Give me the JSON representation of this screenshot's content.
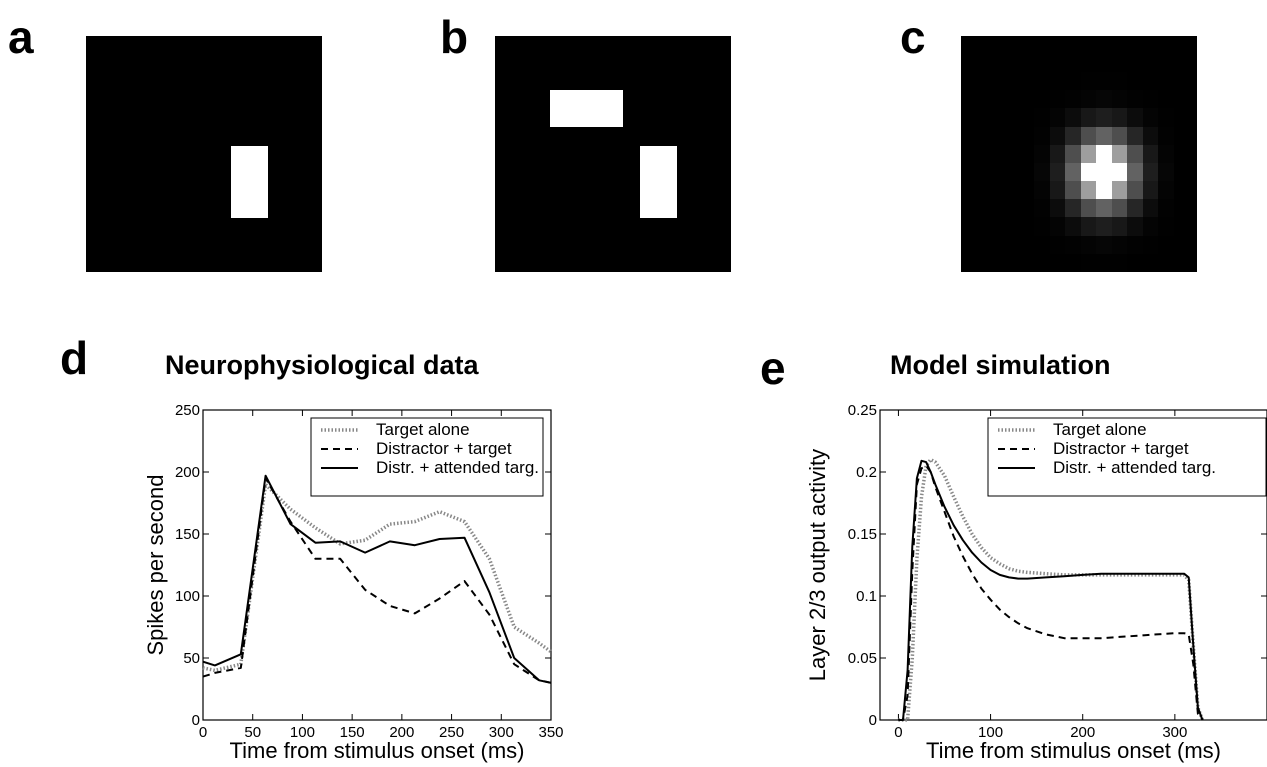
{
  "panels": {
    "a": {
      "letter": "a"
    },
    "b": {
      "letter": "b"
    },
    "c": {
      "letter": "c"
    },
    "d": {
      "letter": "d"
    },
    "e": {
      "letter": "e"
    }
  },
  "chart_data": [
    {
      "type": "line",
      "title": "Neurophysiological data",
      "xlabel": "Time from stimulus onset (ms)",
      "ylabel": "Spikes per second",
      "xlim": [
        0,
        350
      ],
      "ylim": [
        0,
        250
      ],
      "xticks": [
        "0",
        "50",
        "100",
        "150",
        "200",
        "250",
        "300",
        "350"
      ],
      "yticks": [
        "0",
        "50",
        "100",
        "150",
        "200",
        "250"
      ],
      "legend_position": "top-right",
      "series": [
        {
          "name": "Target alone",
          "style": "dotted",
          "color": "#888888",
          "x": [
            0,
            12,
            38,
            63,
            88,
            113,
            138,
            163,
            188,
            213,
            238,
            263,
            288,
            313,
            338,
            350
          ],
          "y": [
            42,
            40,
            45,
            190,
            170,
            155,
            142,
            145,
            158,
            160,
            168,
            160,
            130,
            75,
            62,
            55
          ]
        },
        {
          "name": "Distractor + target",
          "style": "dashed",
          "color": "#000000",
          "x": [
            0,
            12,
            38,
            63,
            88,
            113,
            138,
            163,
            188,
            213,
            238,
            263,
            288,
            313,
            338,
            350
          ],
          "y": [
            35,
            38,
            42,
            195,
            160,
            130,
            130,
            105,
            92,
            86,
            98,
            112,
            85,
            45,
            32,
            30
          ]
        },
        {
          "name": "Distr. + attended targ.",
          "style": "solid",
          "color": "#000000",
          "x": [
            0,
            12,
            38,
            63,
            88,
            113,
            138,
            163,
            188,
            213,
            238,
            263,
            288,
            313,
            338,
            350
          ],
          "y": [
            47,
            44,
            53,
            197,
            158,
            143,
            144,
            135,
            144,
            141,
            146,
            147,
            103,
            50,
            32,
            30
          ]
        }
      ]
    },
    {
      "type": "line",
      "title": "Model simulation",
      "xlabel": "Time from stimulus onset (ms)",
      "ylabel": "Layer 2/3 output activity",
      "xlim": [
        -20,
        400
      ],
      "ylim": [
        0,
        0.25
      ],
      "xticks": [
        "0",
        "100",
        "200",
        "300"
      ],
      "yticks": [
        "0",
        "0.05",
        "0.1",
        "0.15",
        "0.2",
        "0.25"
      ],
      "legend_position": "top-right",
      "series": [
        {
          "name": "Target alone",
          "style": "dotted",
          "color": "#888888",
          "x": [
            0,
            5,
            10,
            15,
            20,
            25,
            30,
            35,
            40,
            50,
            60,
            70,
            80,
            90,
            100,
            110,
            120,
            130,
            140,
            160,
            180,
            200,
            220,
            240,
            260,
            280,
            300,
            310,
            315,
            320,
            325,
            330
          ],
          "y": [
            0,
            0,
            0,
            0.05,
            0.13,
            0.18,
            0.205,
            0.21,
            0.208,
            0.197,
            0.18,
            0.164,
            0.15,
            0.139,
            0.131,
            0.126,
            0.122,
            0.12,
            0.119,
            0.118,
            0.117,
            0.117,
            0.117,
            0.117,
            0.117,
            0.117,
            0.117,
            0.117,
            0.113,
            0.06,
            0.01,
            0
          ]
        },
        {
          "name": "Distractor + target",
          "style": "dashed",
          "color": "#000000",
          "x": [
            0,
            5,
            10,
            15,
            20,
            25,
            30,
            35,
            40,
            50,
            60,
            70,
            80,
            90,
            100,
            110,
            120,
            130,
            140,
            160,
            180,
            200,
            220,
            240,
            260,
            280,
            300,
            310,
            315,
            320,
            325,
            330
          ],
          "y": [
            0,
            0,
            0.02,
            0.12,
            0.19,
            0.203,
            0.205,
            0.2,
            0.188,
            0.168,
            0.148,
            0.132,
            0.118,
            0.106,
            0.097,
            0.089,
            0.083,
            0.078,
            0.074,
            0.069,
            0.066,
            0.066,
            0.066,
            0.067,
            0.068,
            0.069,
            0.07,
            0.07,
            0.069,
            0.045,
            0.005,
            0
          ]
        },
        {
          "name": "Distr. + attended targ.",
          "style": "solid",
          "color": "#000000",
          "x": [
            0,
            5,
            10,
            15,
            20,
            25,
            30,
            35,
            40,
            50,
            60,
            70,
            80,
            90,
            100,
            110,
            120,
            130,
            140,
            160,
            180,
            200,
            220,
            240,
            260,
            280,
            300,
            310,
            315,
            320,
            325,
            330
          ],
          "y": [
            0,
            0,
            0.04,
            0.14,
            0.195,
            0.209,
            0.208,
            0.2,
            0.19,
            0.172,
            0.157,
            0.145,
            0.135,
            0.127,
            0.121,
            0.117,
            0.115,
            0.114,
            0.114,
            0.115,
            0.116,
            0.117,
            0.118,
            0.118,
            0.118,
            0.118,
            0.118,
            0.118,
            0.115,
            0.06,
            0.01,
            0
          ]
        }
      ]
    }
  ]
}
